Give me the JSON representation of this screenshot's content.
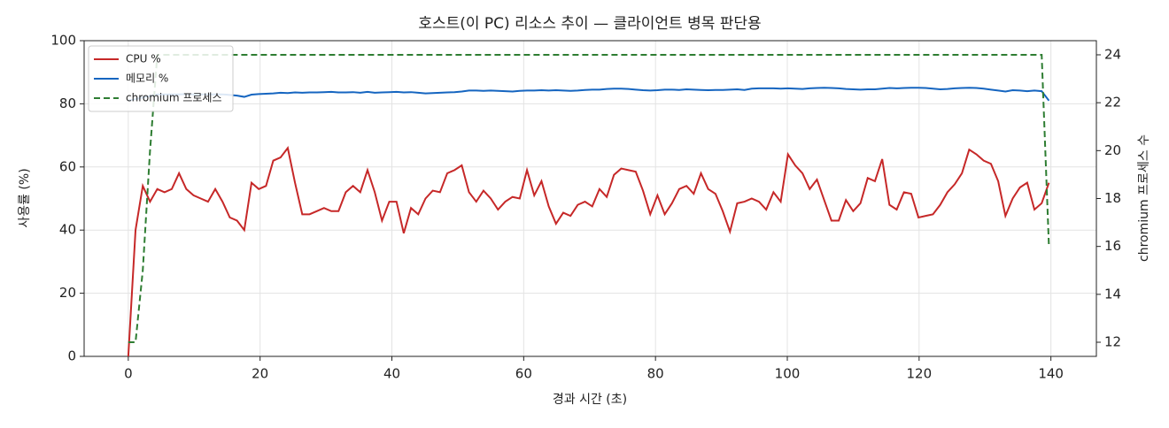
{
  "chart_data": {
    "type": "line",
    "title": "호스트(이 PC) 리소스 추이 — 클라이언트 병목 판단용",
    "x_label": "경과 시간 (초)",
    "y_label": "사용률 (%)",
    "y2_label": "chromium 프로세스 수",
    "x": [
      0,
      1.1,
      2.2,
      3.3,
      4.4,
      5.5,
      6.6,
      7.7,
      8.8,
      9.9,
      11,
      12.1,
      13.2,
      14.3,
      15.4,
      16.5,
      17.6,
      18.7,
      19.8,
      20.9,
      22,
      23.1,
      24.2,
      25.3,
      26.4,
      27.5,
      28.6,
      29.7,
      30.8,
      31.9,
      33,
      34.1,
      35.2,
      36.3,
      37.4,
      38.5,
      39.6,
      40.7,
      41.8,
      42.9,
      44,
      45.1,
      46.2,
      47.3,
      48.4,
      49.5,
      50.6,
      51.7,
      52.8,
      53.9,
      55,
      56.1,
      57.2,
      58.3,
      59.4,
      60.5,
      61.6,
      62.7,
      63.8,
      64.9,
      66,
      67.1,
      68.2,
      69.3,
      70.4,
      71.5,
      72.6,
      73.7,
      74.8,
      75.9,
      77,
      78.1,
      79.2,
      80.3,
      81.4,
      82.5,
      83.6,
      84.7,
      85.8,
      86.9,
      88,
      89.1,
      90.2,
      91.3,
      92.4,
      93.5,
      94.6,
      95.7,
      96.8,
      97.9,
      99,
      100.1,
      101.2,
      102.3,
      103.4,
      104.5,
      105.6,
      106.7,
      107.8,
      108.9,
      110,
      111.1,
      112.2,
      113.3,
      114.4,
      115.5,
      116.6,
      117.7,
      118.8,
      119.9,
      121,
      122.1,
      123.2,
      124.3,
      125.4,
      126.5,
      127.6,
      128.7,
      129.8,
      130.9,
      132,
      133.1,
      134.2,
      135.3,
      136.4,
      137.5,
      138.6,
      139.7
    ],
    "series": [
      {
        "name": "CPU %",
        "color": "#c62828",
        "axis": "y",
        "dash": false,
        "values": [
          0,
          40,
          54,
          49,
          53,
          52,
          53,
          58,
          53,
          51,
          50,
          49,
          53,
          49,
          44,
          43,
          40,
          55,
          53,
          54,
          62,
          63,
          66,
          55,
          45,
          45,
          46,
          47,
          46,
          46,
          52,
          54,
          52,
          59,
          52,
          43,
          49,
          49,
          39,
          47,
          45,
          50,
          52.5,
          52,
          58,
          59,
          60.5,
          52,
          49,
          52.5,
          50,
          46.5,
          49,
          50.5,
          50,
          59,
          51,
          55.5,
          47.5,
          42,
          45.5,
          44.5,
          48,
          49,
          47.5,
          53,
          50.5,
          57.5,
          59.5,
          59,
          58.5,
          52.5,
          45,
          51,
          45,
          48.5,
          53,
          54,
          51.5,
          58,
          53,
          51.5,
          46,
          39.5,
          48.5,
          49,
          50,
          49,
          46.5,
          52,
          49,
          64,
          60.5,
          58,
          53,
          56,
          49.5,
          43,
          43,
          49.5,
          46,
          48.5,
          56.5,
          55.5,
          62.5,
          48,
          46.5,
          52,
          51.5,
          44,
          44.5,
          45,
          48,
          52,
          54.5,
          58,
          65.5,
          64,
          62,
          61,
          55.5,
          44.5,
          50,
          53.5,
          55,
          46.5,
          48.5,
          55
        ]
      },
      {
        "name": "메모리 %",
        "color": "#1565c0",
        "axis": "y",
        "dash": false,
        "values": [
          81,
          81.5,
          82,
          82.5,
          83,
          83,
          83,
          83,
          83.1,
          83,
          83,
          83,
          83,
          83,
          82.8,
          82.6,
          82.2,
          82.9,
          83.1,
          83.2,
          83.3,
          83.5,
          83.4,
          83.6,
          83.5,
          83.6,
          83.6,
          83.7,
          83.8,
          83.6,
          83.6,
          83.7,
          83.5,
          83.8,
          83.5,
          83.6,
          83.7,
          83.8,
          83.6,
          83.7,
          83.5,
          83.3,
          83.4,
          83.5,
          83.6,
          83.7,
          83.9,
          84.2,
          84.2,
          84.1,
          84.2,
          84.1,
          84.0,
          83.9,
          84.1,
          84.2,
          84.2,
          84.3,
          84.2,
          84.3,
          84.2,
          84.1,
          84.2,
          84.4,
          84.5,
          84.5,
          84.7,
          84.8,
          84.8,
          84.7,
          84.5,
          84.3,
          84.2,
          84.3,
          84.5,
          84.5,
          84.4,
          84.6,
          84.5,
          84.4,
          84.3,
          84.4,
          84.4,
          84.5,
          84.6,
          84.4,
          84.8,
          84.9,
          84.9,
          84.9,
          84.8,
          84.9,
          84.8,
          84.7,
          84.9,
          85.0,
          85.1,
          85.0,
          84.9,
          84.7,
          84.6,
          84.5,
          84.6,
          84.6,
          84.8,
          85.0,
          84.9,
          85.0,
          85.1,
          85.1,
          85.0,
          84.8,
          84.6,
          84.7,
          84.9,
          85.0,
          85.1,
          85.0,
          84.8,
          84.5,
          84.2,
          83.9,
          84.3,
          84.2,
          84.0,
          84.2,
          84.0,
          81.0
        ]
      },
      {
        "name": "chromium 프로세스",
        "color": "#2e7d32",
        "axis": "y2",
        "dash": true,
        "values": [
          12,
          12,
          15,
          20,
          24,
          24,
          24,
          24,
          24,
          24,
          24,
          24,
          24,
          24,
          24,
          24,
          24,
          24,
          24,
          24,
          24,
          24,
          24,
          24,
          24,
          24,
          24,
          24,
          24,
          24,
          24,
          24,
          24,
          24,
          24,
          24,
          24,
          24,
          24,
          24,
          24,
          24,
          24,
          24,
          24,
          24,
          24,
          24,
          24,
          24,
          24,
          24,
          24,
          24,
          24,
          24,
          24,
          24,
          24,
          24,
          24,
          24,
          24,
          24,
          24,
          24,
          24,
          24,
          24,
          24,
          24,
          24,
          24,
          24,
          24,
          24,
          24,
          24,
          24,
          24,
          24,
          24,
          24,
          24,
          24,
          24,
          24,
          24,
          24,
          24,
          24,
          24,
          24,
          24,
          24,
          24,
          24,
          24,
          24,
          24,
          24,
          24,
          24,
          24,
          24,
          24,
          24,
          24,
          24,
          24,
          24,
          24,
          24,
          24,
          24,
          24,
          24,
          24,
          24,
          24,
          24,
          24,
          24,
          24,
          24,
          24,
          24,
          16
        ]
      }
    ],
    "xlim": [
      -6.7,
      146.9
    ],
    "xticks": [
      0,
      20,
      40,
      60,
      80,
      100,
      120,
      140
    ],
    "ylim": [
      0,
      100
    ],
    "yticks": [
      0,
      20,
      40,
      60,
      80,
      100
    ],
    "y2lim": [
      11.41,
      24.59
    ],
    "y2ticks": [
      12,
      14,
      16,
      18,
      20,
      22,
      24
    ],
    "grid": true,
    "legend": "upper-left"
  }
}
